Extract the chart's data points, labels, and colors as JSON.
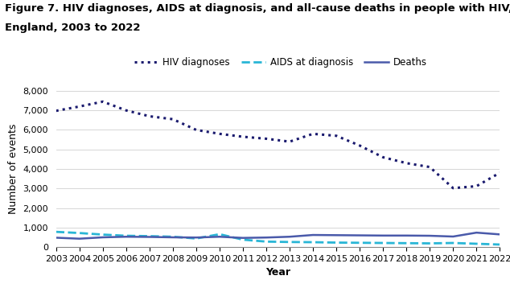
{
  "title_line1": "Figure 7. HIV diagnoses, AIDS at diagnosis, and all-cause deaths in people with HIV,",
  "title_line2": "England, 2003 to 2022",
  "xlabel": "Year",
  "ylabel": "Number of events",
  "years": [
    2003,
    2004,
    2005,
    2006,
    2007,
    2008,
    2009,
    2010,
    2011,
    2012,
    2013,
    2014,
    2015,
    2016,
    2017,
    2018,
    2019,
    2020,
    2021,
    2022
  ],
  "hiv_diagnoses": [
    6980,
    7200,
    7450,
    7000,
    6700,
    6550,
    6000,
    5800,
    5650,
    5550,
    5400,
    5800,
    5700,
    5200,
    4600,
    4300,
    4100,
    3020,
    3118,
    3805
  ],
  "aids_at_diagnosis": [
    780,
    720,
    640,
    580,
    560,
    530,
    440,
    660,
    380,
    280,
    260,
    250,
    230,
    220,
    210,
    200,
    190,
    210,
    170,
    130
  ],
  "deaths": [
    480,
    430,
    500,
    530,
    520,
    500,
    490,
    530,
    470,
    490,
    530,
    620,
    610,
    600,
    590,
    590,
    580,
    540,
    740,
    650
  ],
  "hiv_color": "#1a1a6e",
  "aids_color": "#29b6d6",
  "deaths_color": "#4a5aaa",
  "ylim": [
    0,
    8000
  ],
  "yticks": [
    0,
    1000,
    2000,
    3000,
    4000,
    5000,
    6000,
    7000,
    8000
  ],
  "grid_color": "#d0d0d0",
  "title_fontsize": 9.5,
  "axis_label_fontsize": 9,
  "tick_fontsize": 8,
  "legend_fontsize": 8.5
}
